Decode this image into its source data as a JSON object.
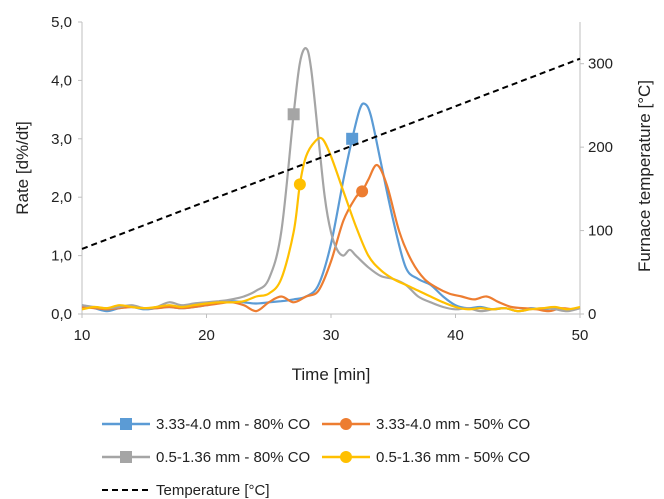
{
  "chart_data": {
    "type": "line",
    "xlabel": "Time [min]",
    "ylabel": "Rate [d%/dt]",
    "y2label": "Furnace temperature [°C]",
    "xlim": [
      10,
      50
    ],
    "ylim": [
      0,
      5
    ],
    "y2lim": [
      0,
      350
    ],
    "x_ticks": [
      "10",
      "20",
      "30",
      "40",
      "50"
    ],
    "y_ticks": [
      "0,0",
      "1,0",
      "2,0",
      "3,0",
      "4,0",
      "5,0"
    ],
    "y2_ticks": [
      "0",
      "100",
      "200",
      "300"
    ],
    "grid": false,
    "legend_position": "bottom",
    "series": [
      {
        "name": "3.33-4.0 mm - 80% CO",
        "color": "#5b9bd5",
        "marker": "square",
        "marker_point": [
          31.7,
          3.0
        ],
        "points": [
          [
            10,
            0.15
          ],
          [
            11,
            0.1
          ],
          [
            12,
            0.05
          ],
          [
            13,
            0.1
          ],
          [
            14,
            0.12
          ],
          [
            15,
            0.08
          ],
          [
            16,
            0.1
          ],
          [
            17,
            0.12
          ],
          [
            18,
            0.1
          ],
          [
            19,
            0.12
          ],
          [
            20,
            0.15
          ],
          [
            21,
            0.2
          ],
          [
            22,
            0.22
          ],
          [
            23,
            0.2
          ],
          [
            24,
            0.18
          ],
          [
            25,
            0.2
          ],
          [
            26,
            0.22
          ],
          [
            27,
            0.25
          ],
          [
            28,
            0.3
          ],
          [
            29,
            0.5
          ],
          [
            30,
            1.2
          ],
          [
            31,
            2.3
          ],
          [
            31.7,
            3.0
          ],
          [
            32.3,
            3.5
          ],
          [
            32.7,
            3.6
          ],
          [
            33.2,
            3.4
          ],
          [
            34,
            2.6
          ],
          [
            35,
            1.6
          ],
          [
            36,
            0.8
          ],
          [
            37,
            0.6
          ],
          [
            38,
            0.5
          ],
          [
            39,
            0.3
          ],
          [
            40,
            0.15
          ],
          [
            41,
            0.1
          ],
          [
            42,
            0.12
          ],
          [
            43,
            0.08
          ],
          [
            44,
            0.1
          ],
          [
            45,
            0.05
          ],
          [
            46,
            0.1
          ],
          [
            47,
            0.08
          ],
          [
            48,
            0.1
          ],
          [
            49,
            0.08
          ],
          [
            50,
            0.1
          ]
        ]
      },
      {
        "name": "3.33-4.0 mm - 50% CO",
        "color": "#ed7d31",
        "marker": "circle",
        "marker_point": [
          32.5,
          2.1
        ],
        "points": [
          [
            10,
            0.12
          ],
          [
            11,
            0.1
          ],
          [
            12,
            0.08
          ],
          [
            13,
            0.1
          ],
          [
            14,
            0.12
          ],
          [
            15,
            0.1
          ],
          [
            16,
            0.1
          ],
          [
            17,
            0.12
          ],
          [
            18,
            0.1
          ],
          [
            19,
            0.12
          ],
          [
            20,
            0.15
          ],
          [
            21,
            0.18
          ],
          [
            22,
            0.2
          ],
          [
            23,
            0.15
          ],
          [
            24,
            0.05
          ],
          [
            25,
            0.2
          ],
          [
            26,
            0.3
          ],
          [
            27,
            0.2
          ],
          [
            28,
            0.3
          ],
          [
            29,
            0.4
          ],
          [
            30,
            0.9
          ],
          [
            31,
            1.6
          ],
          [
            32,
            2.0
          ],
          [
            32.5,
            2.1
          ],
          [
            33,
            2.3
          ],
          [
            33.7,
            2.55
          ],
          [
            34.5,
            2.2
          ],
          [
            35.5,
            1.4
          ],
          [
            36.5,
            0.9
          ],
          [
            37.5,
            0.6
          ],
          [
            38.5,
            0.45
          ],
          [
            39.5,
            0.35
          ],
          [
            40.5,
            0.3
          ],
          [
            41.5,
            0.25
          ],
          [
            42.5,
            0.3
          ],
          [
            43.5,
            0.2
          ],
          [
            44.5,
            0.12
          ],
          [
            45.5,
            0.1
          ],
          [
            46.5,
            0.08
          ],
          [
            47.5,
            0.05
          ],
          [
            48.5,
            0.1
          ],
          [
            49.5,
            0.08
          ],
          [
            50,
            0.1
          ]
        ]
      },
      {
        "name": "0.5-1.36 mm - 80% CO",
        "color": "#a5a5a5",
        "marker": "square",
        "marker_point": [
          27.0,
          3.42
        ],
        "points": [
          [
            10,
            0.15
          ],
          [
            11,
            0.12
          ],
          [
            12,
            0.1
          ],
          [
            13,
            0.12
          ],
          [
            14,
            0.15
          ],
          [
            15,
            0.1
          ],
          [
            16,
            0.12
          ],
          [
            17,
            0.2
          ],
          [
            18,
            0.15
          ],
          [
            19,
            0.18
          ],
          [
            20,
            0.2
          ],
          [
            21,
            0.22
          ],
          [
            22,
            0.25
          ],
          [
            23,
            0.3
          ],
          [
            24,
            0.4
          ],
          [
            25,
            0.6
          ],
          [
            26,
            1.4
          ],
          [
            27,
            3.42
          ],
          [
            27.5,
            4.3
          ],
          [
            28,
            4.55
          ],
          [
            28.4,
            4.2
          ],
          [
            29,
            3.0
          ],
          [
            29.5,
            2.0
          ],
          [
            30,
            1.4
          ],
          [
            30.5,
            1.1
          ],
          [
            31,
            1.0
          ],
          [
            31.5,
            1.1
          ],
          [
            32,
            1.0
          ],
          [
            33,
            0.8
          ],
          [
            34,
            0.65
          ],
          [
            35,
            0.6
          ],
          [
            36,
            0.5
          ],
          [
            37,
            0.3
          ],
          [
            38,
            0.2
          ],
          [
            39,
            0.12
          ],
          [
            40,
            0.08
          ],
          [
            41,
            0.1
          ],
          [
            42,
            0.05
          ],
          [
            43,
            0.08
          ],
          [
            44,
            0.1
          ],
          [
            45,
            0.05
          ],
          [
            46,
            0.08
          ],
          [
            47,
            0.1
          ],
          [
            48,
            0.08
          ],
          [
            49,
            0.05
          ],
          [
            50,
            0.1
          ]
        ]
      },
      {
        "name": "0.5-1.36 mm - 50% CO",
        "color": "#ffc000",
        "marker": "circle",
        "marker_point": [
          27.5,
          2.22
        ],
        "points": [
          [
            10,
            0.08
          ],
          [
            11,
            0.12
          ],
          [
            12,
            0.1
          ],
          [
            13,
            0.15
          ],
          [
            14,
            0.12
          ],
          [
            15,
            0.1
          ],
          [
            16,
            0.12
          ],
          [
            17,
            0.15
          ],
          [
            18,
            0.12
          ],
          [
            19,
            0.15
          ],
          [
            20,
            0.18
          ],
          [
            21,
            0.2
          ],
          [
            22,
            0.2
          ],
          [
            23,
            0.22
          ],
          [
            24,
            0.3
          ],
          [
            25,
            0.35
          ],
          [
            26,
            0.6
          ],
          [
            27,
            1.4
          ],
          [
            27.5,
            2.22
          ],
          [
            28,
            2.7
          ],
          [
            28.7,
            2.95
          ],
          [
            29.3,
            3.0
          ],
          [
            30,
            2.7
          ],
          [
            31,
            2.1
          ],
          [
            32,
            1.5
          ],
          [
            33,
            1.0
          ],
          [
            34,
            0.75
          ],
          [
            35,
            0.6
          ],
          [
            36,
            0.5
          ],
          [
            37,
            0.4
          ],
          [
            38,
            0.3
          ],
          [
            39,
            0.2
          ],
          [
            40,
            0.12
          ],
          [
            41,
            0.08
          ],
          [
            42,
            0.1
          ],
          [
            43,
            0.08
          ],
          [
            44,
            0.1
          ],
          [
            45,
            0.05
          ],
          [
            46,
            0.08
          ],
          [
            47,
            0.1
          ],
          [
            48,
            0.12
          ],
          [
            49,
            0.08
          ],
          [
            50,
            0.12
          ]
        ]
      },
      {
        "name": "Temperature [°C]",
        "color": "#000000",
        "dashed": true,
        "axis": "y2",
        "points": [
          [
            10,
            78
          ],
          [
            50,
            306
          ]
        ]
      }
    ]
  }
}
